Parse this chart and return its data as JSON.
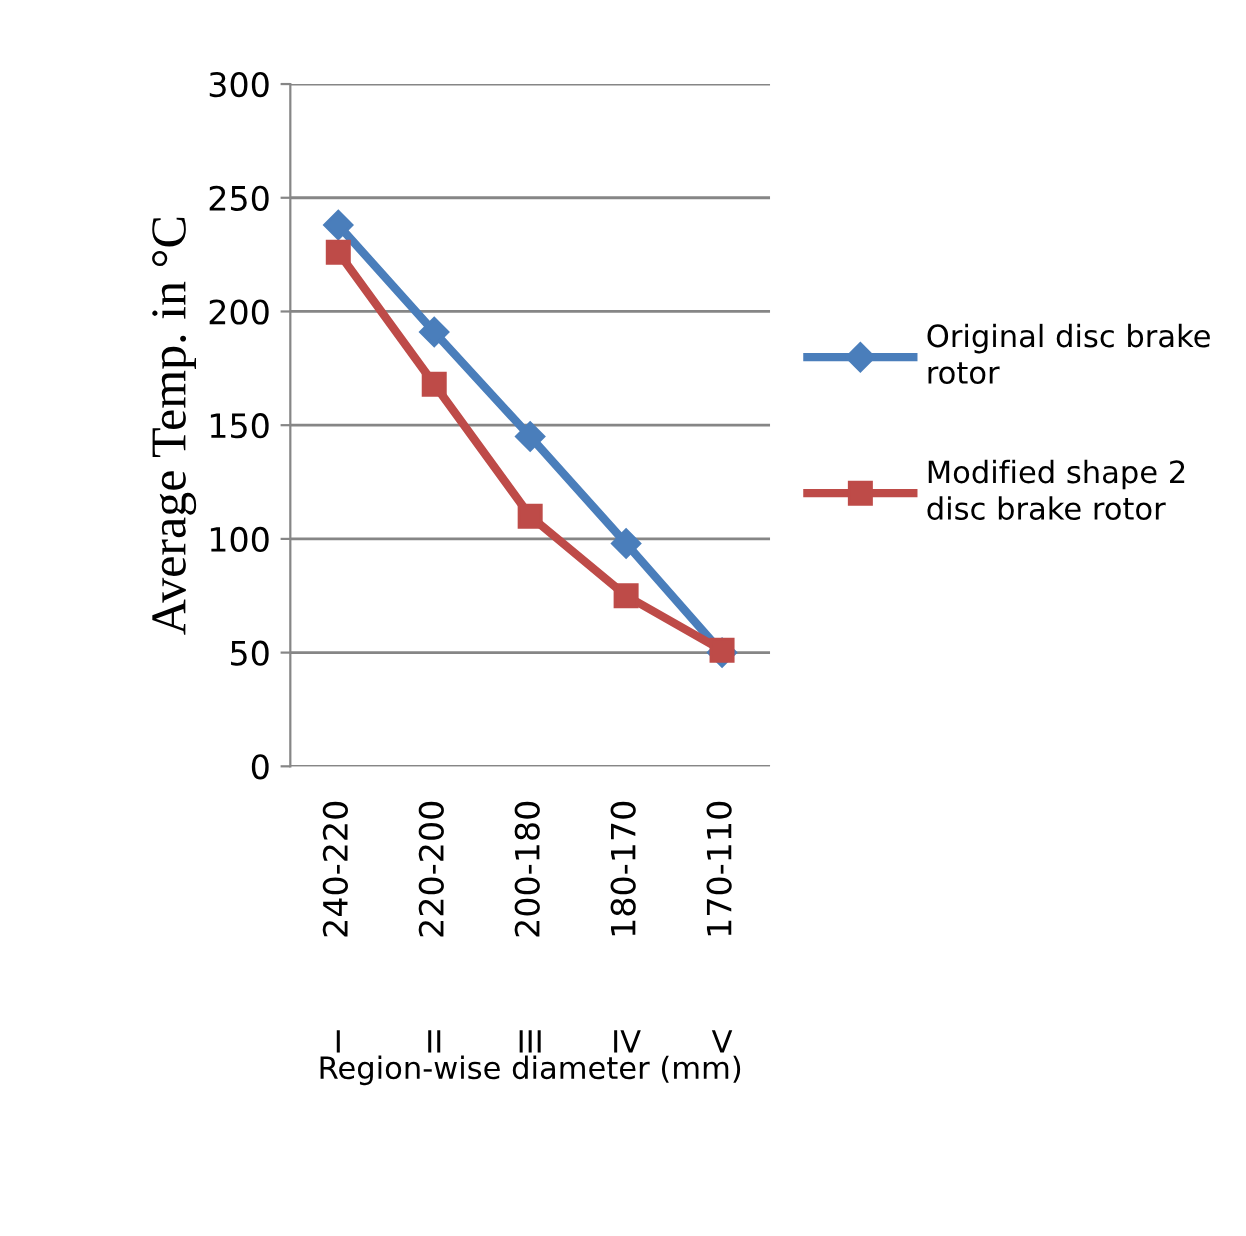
{
  "chart_data": {
    "type": "line",
    "ylabel": "Average Temp. in °C",
    "xlabel": "Region-wise diameter (mm)",
    "categories": [
      "240-220",
      "220-200",
      "200-180",
      "180-170",
      "170-110"
    ],
    "series": [
      {
        "name": "Original disc brake rotor",
        "color": "#4a7ebb",
        "marker": "diamond",
        "values": [
          238,
          191,
          145,
          98,
          50
        ]
      },
      {
        "name": "Modified shape 2 disc brake rotor",
        "color": "#be4b48",
        "marker": "square",
        "values": [
          226,
          168,
          110,
          75,
          51
        ]
      }
    ],
    "annotations": [
      "I",
      "II",
      "III",
      "IV",
      "V"
    ],
    "ylim": [
      0,
      300
    ],
    "yticks": [
      0,
      50,
      100,
      150,
      200,
      250,
      300
    ],
    "grid": "y",
    "legend": "right"
  }
}
